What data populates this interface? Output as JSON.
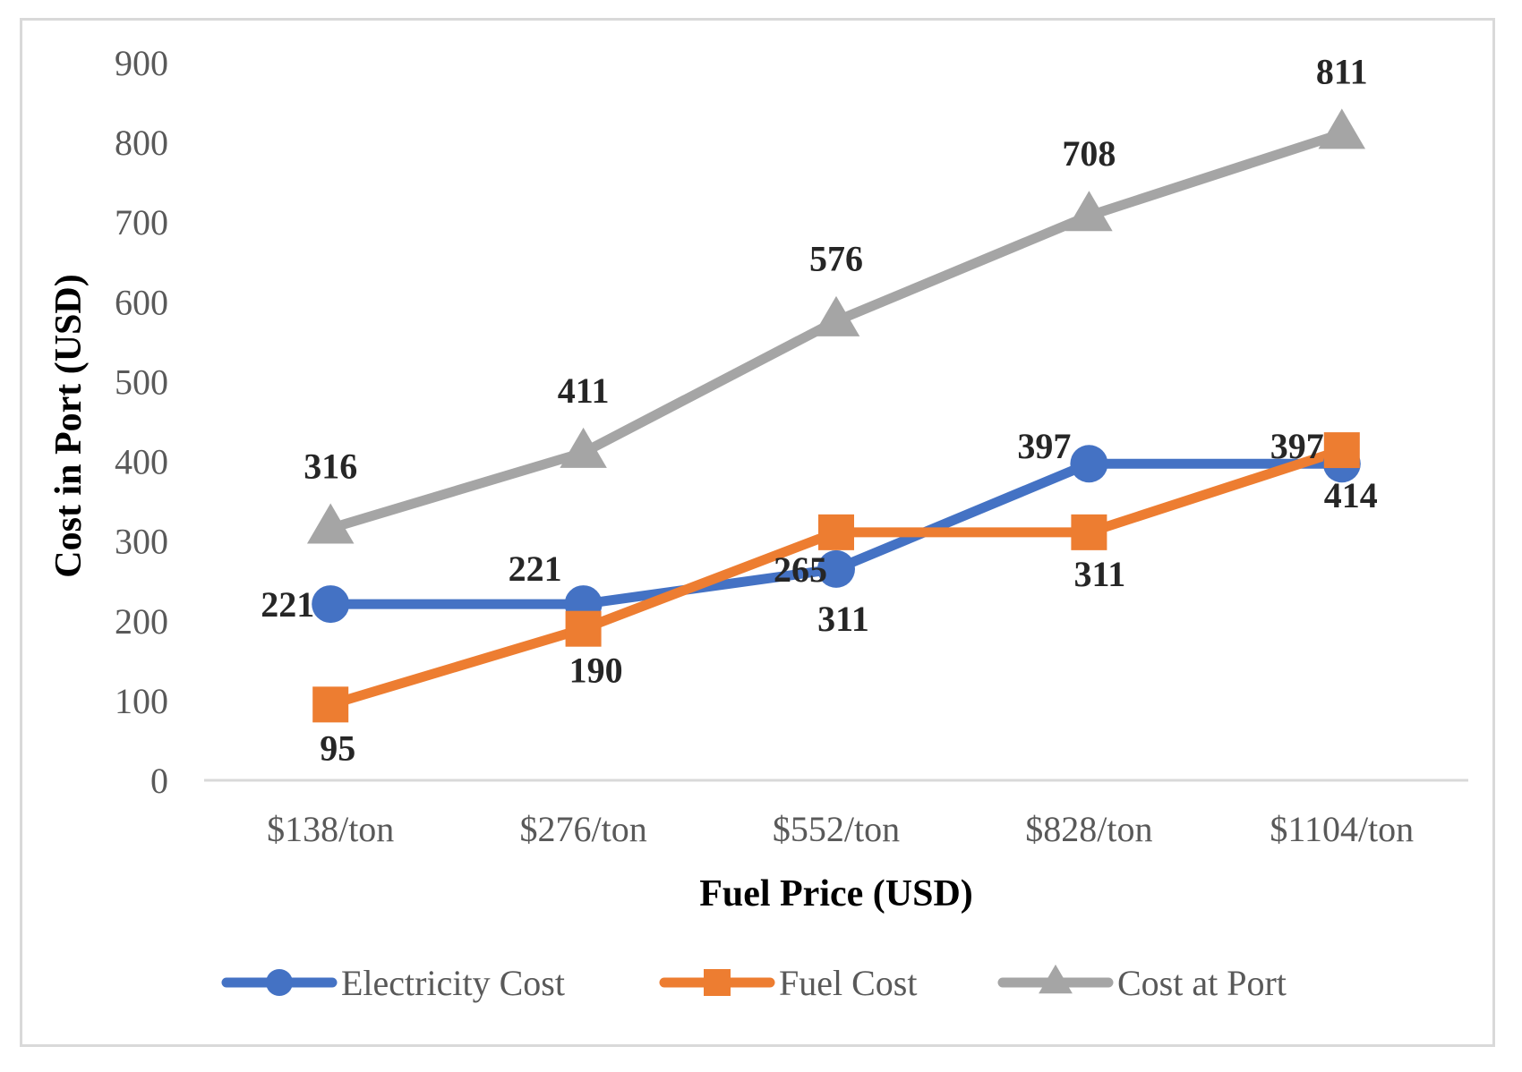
{
  "chart_data": {
    "type": "line",
    "title": "",
    "xlabel": "Fuel Price (USD)",
    "ylabel": "Cost in Port (USD)",
    "categories": [
      "$138/ton",
      "$276/ton",
      "$552/ton",
      "$828/ton",
      "$1104/ton"
    ],
    "ylim": [
      0,
      900
    ],
    "yticks": [
      "0",
      "100",
      "200",
      "300",
      "400",
      "500",
      "600",
      "700",
      "800",
      "900"
    ],
    "grid": false,
    "legend_position": "bottom",
    "series": [
      {
        "name": "Electricity Cost",
        "values": [
          221,
          221,
          265,
          397,
          397
        ],
        "labels": [
          "221",
          "221",
          "265",
          "397",
          "397"
        ],
        "color": "#4472c4",
        "marker": "circle"
      },
      {
        "name": "Fuel Cost",
        "values": [
          95,
          190,
          311,
          311,
          414
        ],
        "labels": [
          "95",
          "190",
          "311",
          "311",
          "414"
        ],
        "color": "#ed7d31",
        "marker": "square"
      },
      {
        "name": "Cost at Port",
        "values": [
          316,
          411,
          576,
          708,
          811
        ],
        "labels": [
          "316",
          "411",
          "576",
          "708",
          "811"
        ],
        "color": "#a5a5a5",
        "marker": "triangle"
      }
    ]
  }
}
